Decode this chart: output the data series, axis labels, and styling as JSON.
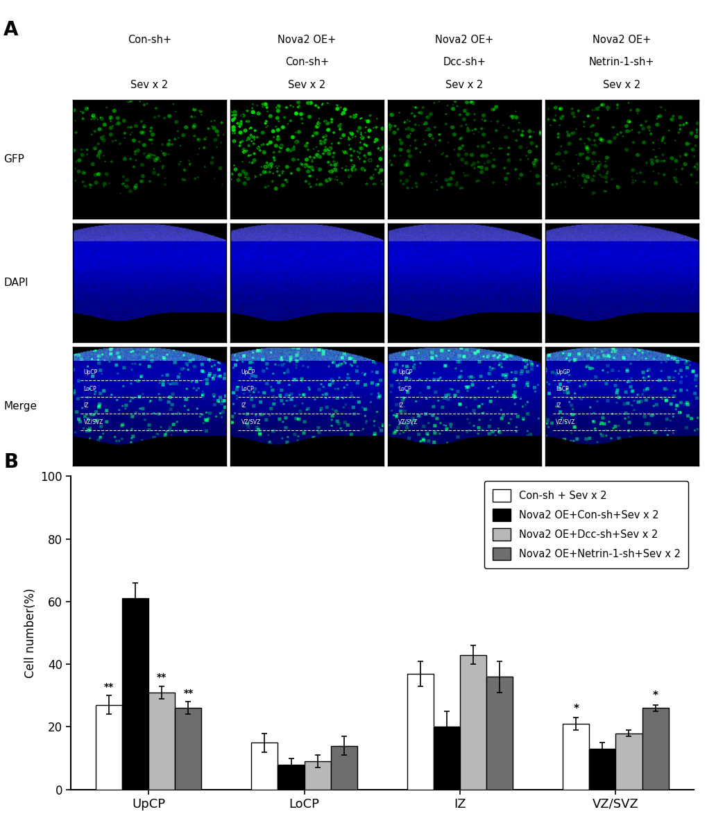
{
  "panel_A_label": "A",
  "panel_B_label": "B",
  "col_labels_line1": [
    "Con-sh+",
    "Nova2 OE+",
    "Nova2 OE+",
    "Nova2 OE+"
  ],
  "col_labels_line2": [
    "",
    "Con-sh+",
    "Dcc-sh+",
    "Netrin-1-sh+"
  ],
  "col_labels_line3": [
    "Sev x 2",
    "Sev x 2",
    "Sev x 2",
    "Sev x 2"
  ],
  "row_labels": [
    "GFP",
    "DAPI",
    "Merge"
  ],
  "bar_categories": [
    "UpCP",
    "LoCP",
    "IZ",
    "VZ/SVZ"
  ],
  "bar_values": [
    [
      27,
      61,
      31,
      26
    ],
    [
      15,
      8,
      9,
      14
    ],
    [
      37,
      20,
      43,
      36
    ],
    [
      21,
      13,
      18,
      26
    ]
  ],
  "bar_errors": [
    [
      3,
      5,
      2,
      2
    ],
    [
      3,
      2,
      2,
      3
    ],
    [
      4,
      5,
      3,
      5
    ],
    [
      2,
      2,
      1,
      1
    ]
  ],
  "bar_colors": [
    "#ffffff",
    "#000000",
    "#b8b8b8",
    "#6e6e6e"
  ],
  "bar_edge_colors": [
    "#000000",
    "#000000",
    "#000000",
    "#000000"
  ],
  "legend_labels": [
    "Con-sh + Sev x 2",
    "Nova2 OE+Con-sh+Sev x 2",
    "Nova2 OE+Dcc-sh+Sev x 2",
    "Nova2 OE+Netrin-1-sh+Sev x 2"
  ],
  "ylabel": "Cell number(%)",
  "ylim": [
    0,
    100
  ],
  "yticks": [
    0,
    20,
    40,
    60,
    80,
    100
  ],
  "figure_bg": "#ffffff"
}
